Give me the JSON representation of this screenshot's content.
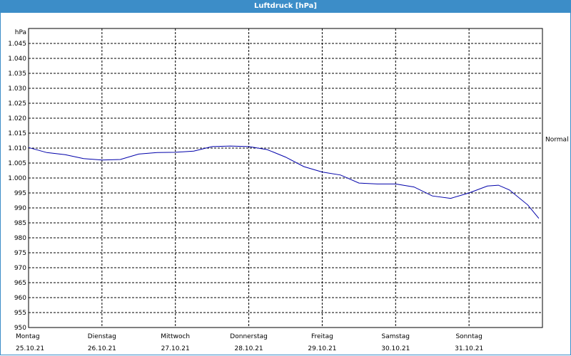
{
  "window": {
    "title": "Luftdruck [hPa]"
  },
  "chart_data": {
    "type": "line",
    "title": "Luftdruck [hPa]",
    "ylabel": "hPa",
    "ylim": [
      950,
      1050
    ],
    "yticks": [
      "950",
      "955",
      "960",
      "965",
      "970",
      "975",
      "980",
      "985",
      "990",
      "995",
      "1.000",
      "1.005",
      "1.010",
      "1.015",
      "1.020",
      "1.025",
      "1.030",
      "1.035",
      "1.040",
      "1.045"
    ],
    "xlim": [
      0,
      7
    ],
    "xticks": [
      {
        "day": "Montag",
        "date": "25.10.21"
      },
      {
        "day": "Dienstag",
        "date": "26.10.21"
      },
      {
        "day": "Mittwoch",
        "date": "27.10.21"
      },
      {
        "day": "Donnerstag",
        "date": "28.10.21"
      },
      {
        "day": "Freitag",
        "date": "29.10.21"
      },
      {
        "day": "Samstag",
        "date": "30.10.21"
      },
      {
        "day": "Sonntag",
        "date": "31.10.21"
      }
    ],
    "reference": {
      "label": "Normal",
      "value": 1013
    },
    "grid": true,
    "colors": {
      "series": "#0000aa",
      "grid": "#000000"
    },
    "series": [
      {
        "x": [
          0,
          0.25,
          0.5,
          0.75,
          1.0,
          1.25,
          1.5,
          1.75,
          2.0,
          2.25,
          2.5,
          2.75,
          3.0,
          3.25,
          3.5,
          3.75,
          4.0,
          4.25,
          4.5,
          4.75,
          5.0,
          5.25,
          5.5,
          5.75,
          6.0,
          6.25,
          6.4,
          6.55,
          6.8,
          6.95
        ],
        "y": [
          1010.2,
          1008.5,
          1007.8,
          1006.5,
          1006.0,
          1006.2,
          1008.0,
          1008.5,
          1008.6,
          1009.0,
          1010.5,
          1010.7,
          1010.5,
          1009.5,
          1007.0,
          1003.8,
          1002.0,
          1001.0,
          998.3,
          998.0,
          998.0,
          997.0,
          994.0,
          993.2,
          995.0,
          997.3,
          997.6,
          996.0,
          991.0,
          986.5
        ]
      }
    ]
  }
}
